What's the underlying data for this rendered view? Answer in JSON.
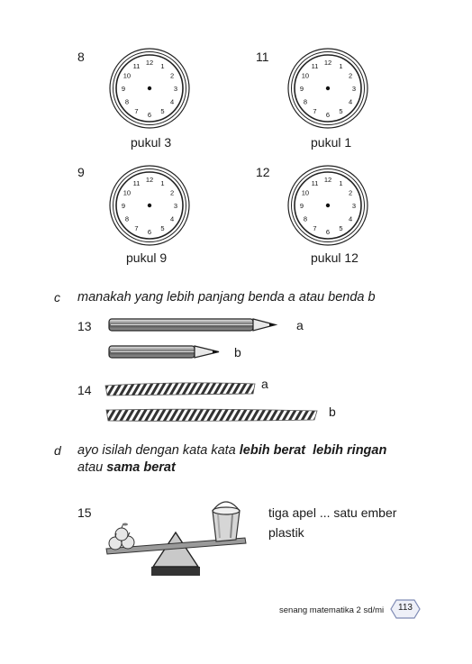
{
  "clocks": [
    {
      "number": "8",
      "caption": "pukul 3"
    },
    {
      "number": "11",
      "caption": "pukul 1"
    },
    {
      "number": "9",
      "caption": "pukul 9"
    },
    {
      "number": "12",
      "caption": "pukul 12"
    }
  ],
  "clock_face_numbers": [
    "12",
    "1",
    "2",
    "3",
    "4",
    "5",
    "6",
    "7",
    "8",
    "9",
    "10",
    "11"
  ],
  "section_c": {
    "letter": "c",
    "instruction": "manakah yang lebih panjang benda a atau benda b",
    "q13": {
      "number": "13",
      "label_a": "a",
      "label_b": "b"
    },
    "q14": {
      "number": "14",
      "label_a": "a",
      "label_b": "b"
    }
  },
  "section_d": {
    "letter": "d",
    "line1_prefix": "ayo isilah dengan kata kata ",
    "line1_bold1": "lebih berat",
    "line1_bold2": "lebih ringan",
    "line2_prefix": "atau ",
    "line2_bold": "sama berat",
    "q15": {
      "number": "15",
      "statement_line1": "tiga apel  ...  satu ember",
      "statement_line2": "plastik"
    }
  },
  "footer": {
    "book_title": "senang matematika 2 sd/mi",
    "page_number": "113"
  }
}
